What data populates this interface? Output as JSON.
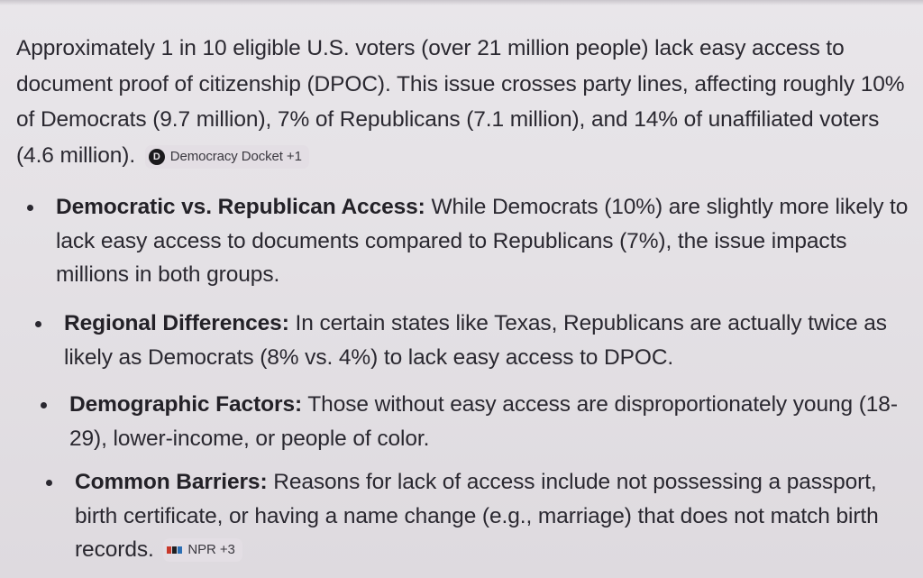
{
  "intro": {
    "text": "Approximately 1 in 10 eligible U.S. voters (over 21 million people) lack easy access to document proof of citizenship (DPOC). This issue crosses party lines, affecting roughly 10% of Democrats (9.7 million), 7% of Republicans (7.1 million), and 14% of unaffiliated voters (4.6 million).",
    "source_chip": {
      "logo_letter": "D",
      "label": "Democracy Docket +1"
    }
  },
  "bullets": [
    {
      "title": "Democratic vs. Republican Access:",
      "text": "While Democrats (10%) are slightly more likely to lack easy access to documents compared to Republicans (7%), the issue impacts millions in both groups."
    },
    {
      "title": "Regional Differences:",
      "text": "In certain states like Texas, Republicans are actually twice as likely as Democrats (8% vs. 4%) to lack easy access to DPOC."
    },
    {
      "title": "Demographic Factors:",
      "text": "Those without easy access are disproportionately young (18-29), lower-income, or people of color."
    },
    {
      "title": "Common Barriers:",
      "text": "Reasons for lack of access include not possessing a passport, birth certificate, or having a name change (e.g., marriage) that does not match birth records.",
      "source_chip": {
        "label": "NPR +3"
      }
    }
  ],
  "colors": {
    "background": "#e6e3e7",
    "text": "#2a2830",
    "chip_background": "#e3dee4"
  }
}
